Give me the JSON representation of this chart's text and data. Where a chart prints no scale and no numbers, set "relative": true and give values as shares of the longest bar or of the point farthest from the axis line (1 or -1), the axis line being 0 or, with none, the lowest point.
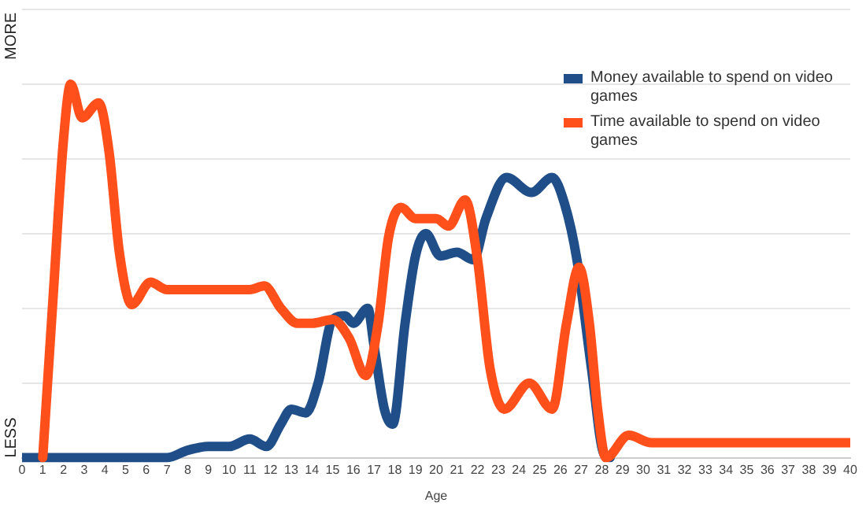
{
  "chart_data": {
    "type": "line",
    "relative": true,
    "xlabel": "Age",
    "xlim": [
      0,
      40
    ],
    "xticks": [
      0,
      1,
      2,
      3,
      4,
      5,
      6,
      7,
      8,
      9,
      10,
      11,
      12,
      13,
      14,
      15,
      16,
      17,
      18,
      19,
      20,
      21,
      22,
      23,
      24,
      25,
      26,
      27,
      28,
      29,
      30,
      31,
      32,
      33,
      34,
      35,
      36,
      37,
      38,
      39,
      40
    ],
    "annotations": [
      "MORE",
      "LESS"
    ],
    "grid": "y",
    "legend": "top right",
    "marker": "none",
    "line_style": "solid",
    "series": [
      {
        "name": "Money available to spend on video games",
        "color": "#1f4e89",
        "x": [
          0,
          7,
          8,
          9,
          10,
          11,
          11.8,
          12.5,
          13,
          13.7,
          14.3,
          15,
          15.6,
          16,
          16.7,
          17,
          17.5,
          17.9,
          18.5,
          19,
          19.5,
          20.2,
          21,
          21.8,
          22.4,
          23.4,
          24.6,
          25.6,
          26.2,
          26.8,
          27.5,
          28.1,
          28.4
        ],
        "values": [
          0,
          0,
          0.02,
          0.03,
          0.03,
          0.05,
          0.03,
          0.09,
          0.13,
          0.12,
          0.2,
          0.37,
          0.38,
          0.36,
          0.4,
          0.3,
          0.13,
          0.09,
          0.36,
          0.54,
          0.6,
          0.54,
          0.55,
          0.53,
          0.64,
          0.75,
          0.71,
          0.75,
          0.68,
          0.53,
          0.24,
          0.01,
          0
        ]
      },
      {
        "name": "Time available to spend on video games",
        "color": "#ff4f1a",
        "x": [
          1,
          1.5,
          2,
          2.35,
          2.9,
          3.7,
          4.2,
          4.7,
          5.3,
          6.2,
          7,
          8,
          9,
          10,
          11,
          11.7,
          12.5,
          13.3,
          14,
          15,
          15.8,
          16.6,
          17.2,
          17.7,
          18.3,
          19,
          20,
          20.6,
          21.4,
          22,
          22.6,
          23.3,
          24.5,
          25.6,
          26.3,
          26.9,
          27.4,
          27.8,
          28.2,
          29.3,
          30.4,
          31,
          40
        ],
        "values": [
          0,
          0.43,
          0.85,
          1,
          0.91,
          0.95,
          0.82,
          0.55,
          0.41,
          0.47,
          0.45,
          0.45,
          0.45,
          0.45,
          0.45,
          0.46,
          0.4,
          0.36,
          0.36,
          0.37,
          0.32,
          0.22,
          0.36,
          0.59,
          0.67,
          0.64,
          0.64,
          0.62,
          0.69,
          0.53,
          0.24,
          0.13,
          0.2,
          0.13,
          0.36,
          0.51,
          0.36,
          0.13,
          0,
          0.06,
          0.04,
          0.04,
          0.04
        ]
      }
    ]
  }
}
